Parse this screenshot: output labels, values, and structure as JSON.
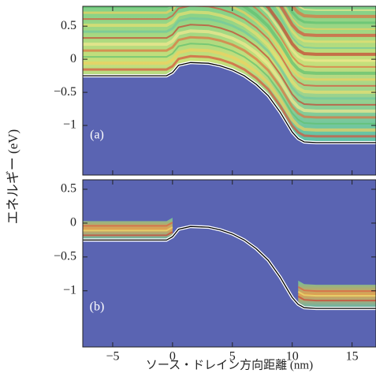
{
  "chart_data": [
    {
      "type": "line",
      "annotation": "(a)",
      "ylabel": "エネルギー (eV)",
      "xlim": [
        -7.5,
        17
      ],
      "xticks": [
        -5,
        0,
        5,
        10,
        15
      ],
      "xtick_labels": false,
      "ylim": [
        -1.75,
        0.8
      ],
      "yticks": [
        {
          "value": 0.5,
          "label": "0.5"
        },
        0,
        {
          "value": -0.5,
          "label": "−0.5"
        },
        {
          "value": -1,
          "label": "−1"
        }
      ],
      "x": [
        -7.5,
        -3,
        -0.5,
        0,
        0.5,
        1.5,
        3,
        4,
        5,
        6,
        7,
        8,
        9,
        9.5,
        10,
        10.5,
        11,
        12,
        17
      ],
      "series": [
        {
          "color": "#000000",
          "values": [
            -0.25,
            -0.25,
            -0.25,
            -0.2,
            -0.09,
            -0.05,
            -0.06,
            -0.1,
            -0.16,
            -0.25,
            -0.38,
            -0.55,
            -0.8,
            -0.95,
            -1.1,
            -1.2,
            -1.25,
            -1.26,
            -1.26
          ]
        }
      ]
    },
    {
      "type": "line",
      "annotation": "(b)",
      "xlabel": "ソース・ドレイン方向距離 (nm)",
      "xlim": [
        -7.5,
        17
      ],
      "xticks": [
        {
          "value": -5,
          "label": "−5"
        },
        0,
        5,
        10,
        15
      ],
      "xtick_labels": true,
      "ylim": [
        -1.83,
        0.64
      ],
      "yticks": [
        {
          "value": 0.5,
          "label": "0.5"
        },
        0,
        {
          "value": -0.5,
          "label": "−0.5"
        },
        {
          "value": -1,
          "label": "−1"
        }
      ],
      "x": [
        -7.5,
        -3,
        -0.5,
        0,
        0.5,
        1.5,
        3,
        4,
        5,
        6,
        7,
        8,
        9,
        9.5,
        10,
        10.5,
        11,
        12,
        17
      ],
      "series": [
        {
          "color": "#000000",
          "values": [
            -0.25,
            -0.25,
            -0.25,
            -0.2,
            -0.09,
            -0.05,
            -0.06,
            -0.1,
            -0.16,
            -0.25,
            -0.38,
            -0.55,
            -0.8,
            -0.95,
            -1.1,
            -1.2,
            -1.25,
            -1.26,
            -1.26
          ]
        }
      ]
    }
  ]
}
